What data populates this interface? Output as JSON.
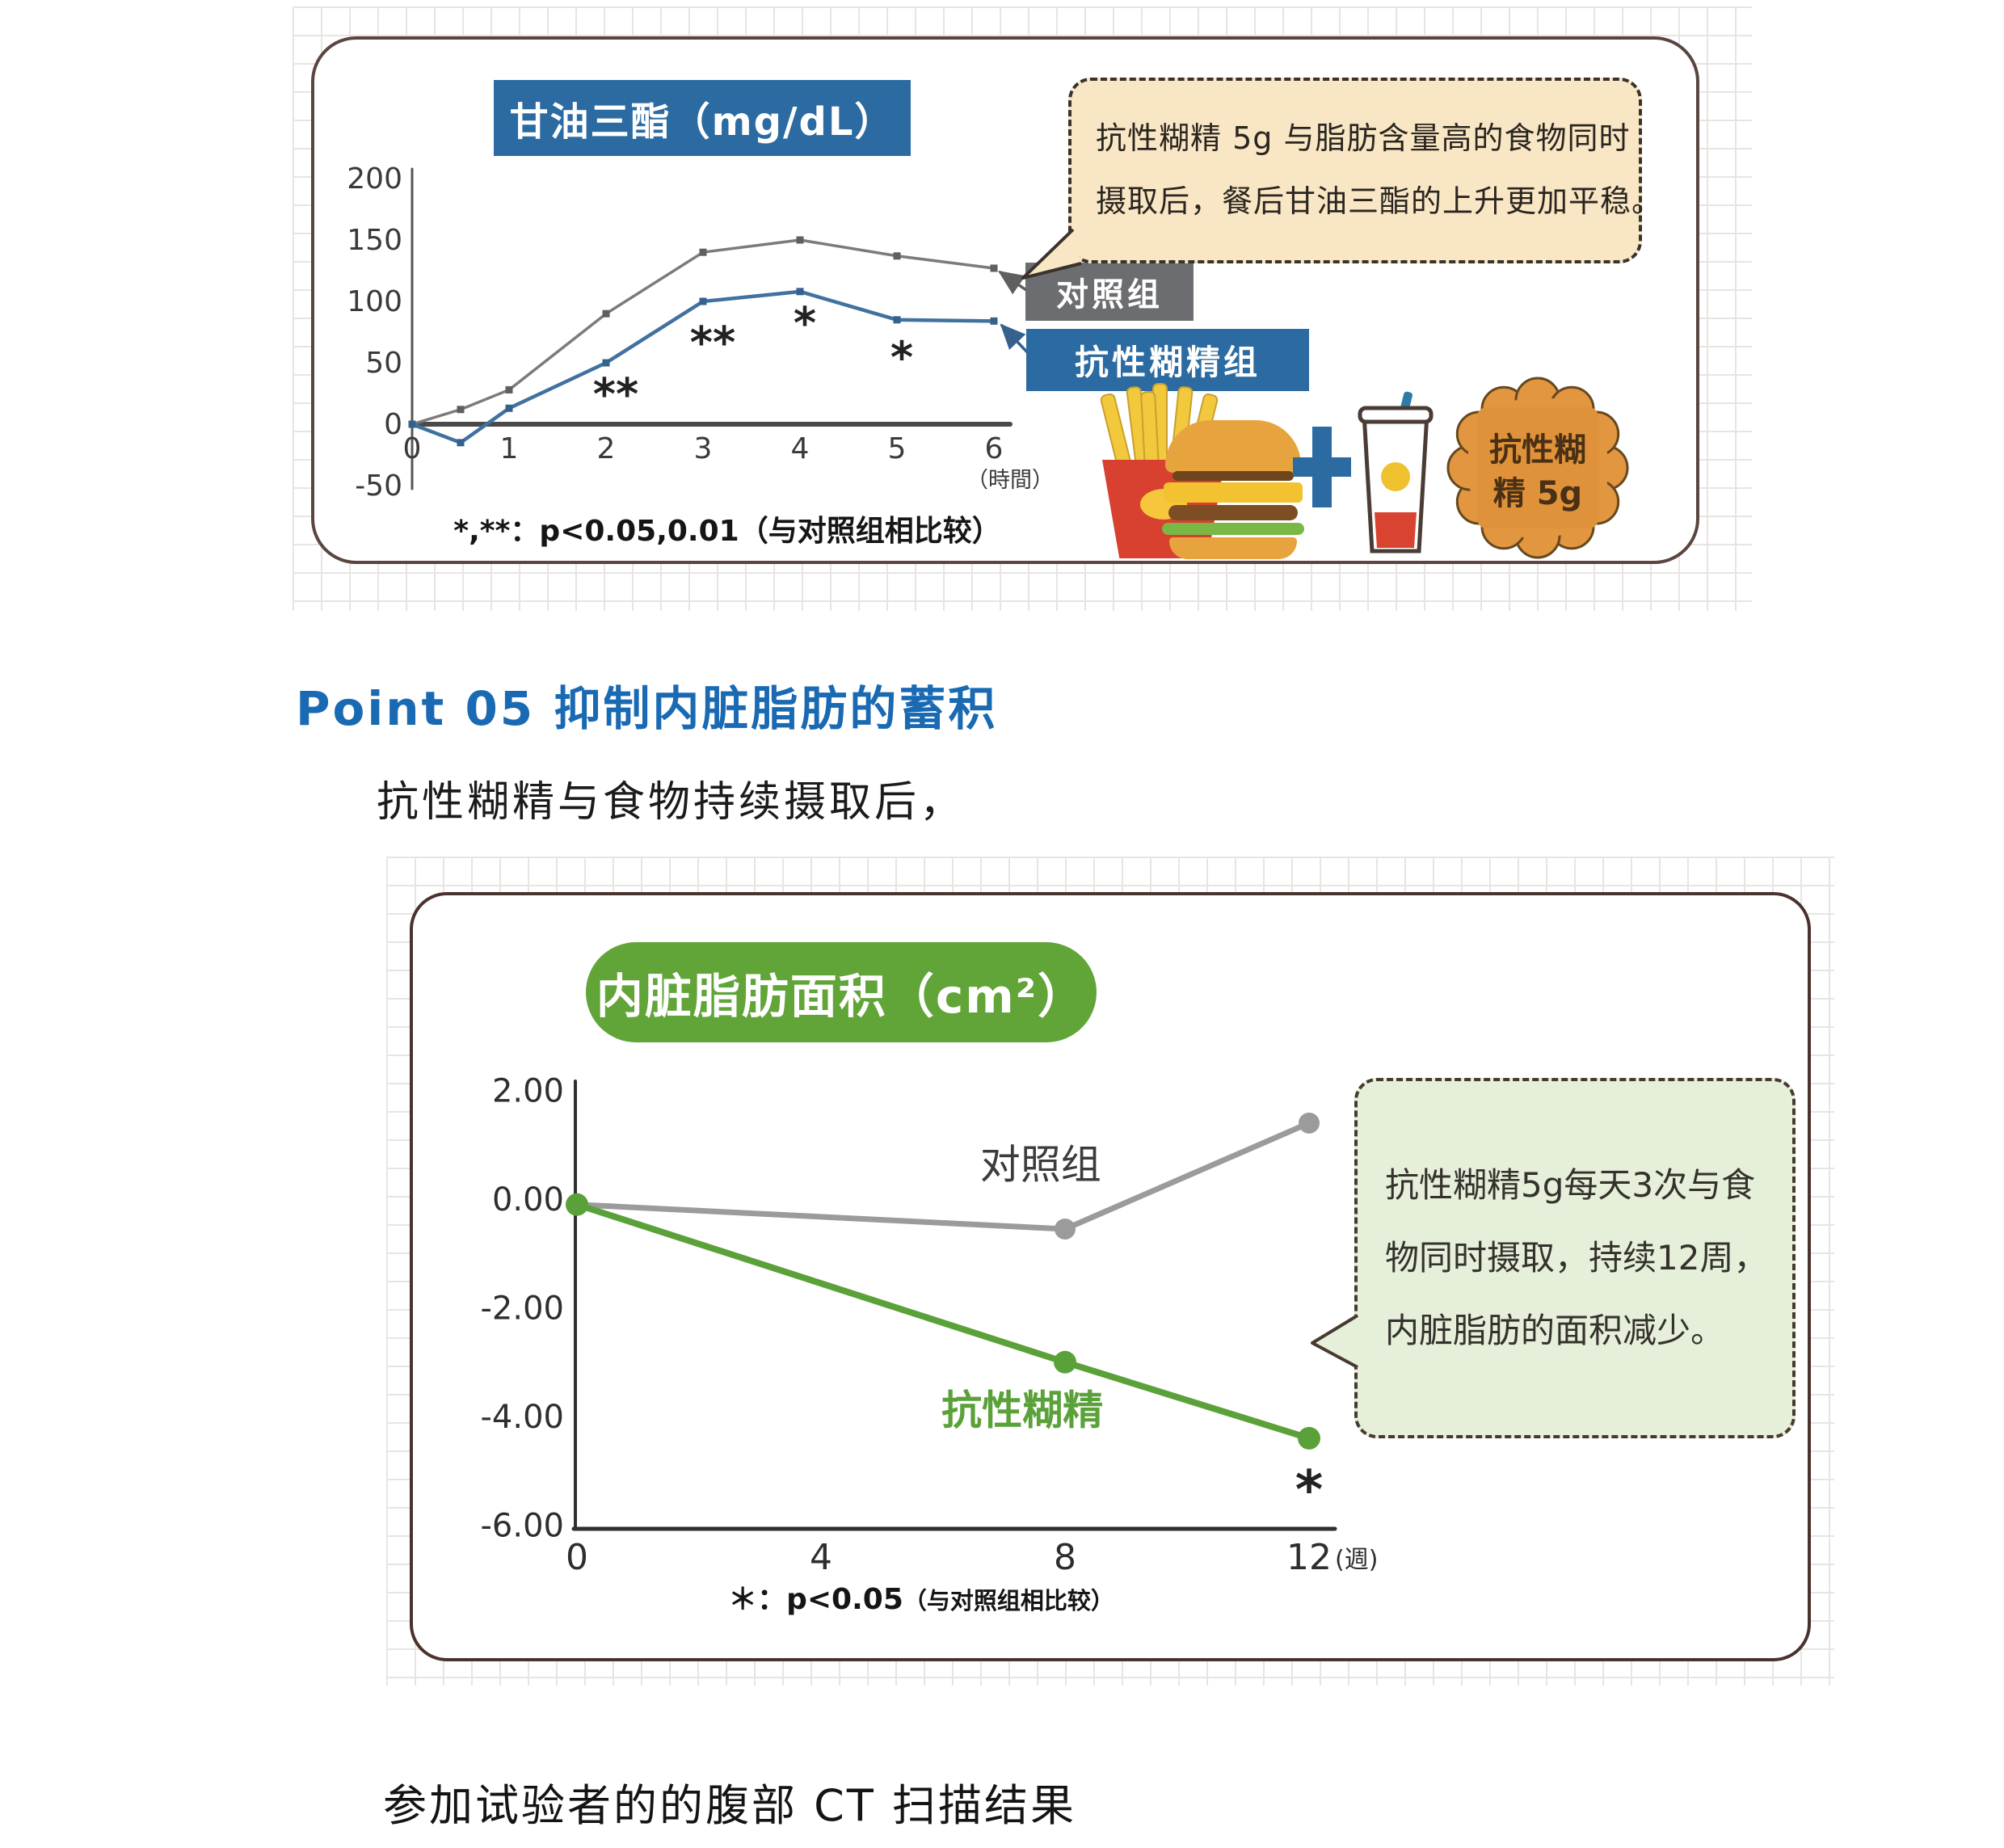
{
  "page": {
    "heading": "Point 05 抑制内脏脂肪的蓄积",
    "paragraph": "抗性糊精与食物持续摄取后，",
    "bottom_text": "参加试验者的的腹部 CT 扫描结果"
  },
  "colors": {
    "panel_border_top": "#5a463f",
    "panel_border_bottom": "#4a332d",
    "title_blue": "#2b6ba2",
    "legend_gray": "#6c6d70",
    "pill_green": "#61a438",
    "heading_blue": "#1a6ab3",
    "bubble_peach": "#f8e6c4",
    "bubble_green": "#e6efda",
    "badge_orange": "#e2963f"
  },
  "top_panel": {
    "title": "甘油三酯（mg/dL）",
    "legend": [
      {
        "label": "对照组",
        "color": "#6c6d70"
      },
      {
        "label": "抗性糊精组",
        "color": "#2b6ba2"
      }
    ],
    "bubble_lines": [
      "抗性糊精 5g 与脂肪含量高的食物同时",
      "摄取后，餐后甘油三酯的上升更加平稳。"
    ],
    "footnote": "*,**：p<0.05,0.01（与对照组相比较）",
    "badge_lines": [
      "抗性糊",
      "精 5g"
    ],
    "icons": [
      "fries-icon",
      "burger-icon",
      "plus-icon",
      "drink-icon",
      "dextrin-badge"
    ]
  },
  "bottom_panel": {
    "title": "内脏脂肪面积（cm²）",
    "bubble_lines": [
      "抗性糊精5g每天3次与食",
      "物同时摄取，持续12周，",
      "内脏脂肪的面积减少。"
    ],
    "footnote_star": "＊：p<0.05",
    "footnote_paren": "（与对照组相比较）"
  },
  "chart_data": [
    {
      "type": "line",
      "title": "甘油三酯（mg/dL）",
      "x": [
        0,
        0.5,
        1,
        2,
        3,
        4,
        5,
        6
      ],
      "x_ticks": [
        0,
        1,
        2,
        3,
        4,
        5,
        6
      ],
      "x_unit": "（時間）",
      "y_ticks": [
        200,
        150,
        100,
        50,
        0,
        -50
      ],
      "ylim": [
        -50,
        200
      ],
      "grid": false,
      "series": [
        {
          "name": "对照组",
          "color": "#7b7b7b",
          "marker": "#5f5f5f",
          "values": [
            0,
            12,
            28,
            90,
            140,
            150,
            137,
            127
          ]
        },
        {
          "name": "抗性糊精组",
          "color": "#41719f",
          "marker": "#35618e",
          "values": [
            0,
            -15,
            13,
            50,
            100,
            108,
            85,
            84
          ]
        }
      ],
      "annotations": [
        {
          "x": 2.1,
          "y": 24,
          "text": "**"
        },
        {
          "x": 3.1,
          "y": 66,
          "text": "**"
        },
        {
          "x": 4.05,
          "y": 82,
          "text": "*"
        },
        {
          "x": 5.05,
          "y": 54,
          "text": "*"
        }
      ],
      "footnote": "*,**：p<0.05,0.01（与对照组相比较）"
    },
    {
      "type": "line",
      "title": "内脏脂肪面积（cm²）",
      "x": [
        0,
        8,
        12
      ],
      "x_ticks": [
        0,
        4,
        8,
        12
      ],
      "x_unit": "(週)",
      "y_ticks": [
        "2.00",
        "0.00",
        "-2.00",
        "-4.00",
        "-6.00"
      ],
      "ylim": [
        -6,
        2
      ],
      "grid": false,
      "series": [
        {
          "name": "对照组",
          "color": "#9b9b9b",
          "values": [
            -0.1,
            -0.55,
            1.4
          ]
        },
        {
          "name": "抗性糊精",
          "color": "#5ba13a",
          "values": [
            -0.1,
            -3.0,
            -4.4
          ]
        }
      ],
      "annotations": [
        {
          "x": 7.6,
          "y": 0.62,
          "text": "对照组",
          "color": "#3c3c3c",
          "size": 50
        },
        {
          "x": 7.3,
          "y": -3.9,
          "text": "抗性糊精",
          "color": "#5ba13a",
          "size": 50,
          "bold": true
        },
        {
          "x": 12.0,
          "y": -5.45,
          "text": "*",
          "color": "#222222",
          "size": 66
        }
      ],
      "footnote": "＊：p<0.05（与对照组相比较）"
    }
  ]
}
